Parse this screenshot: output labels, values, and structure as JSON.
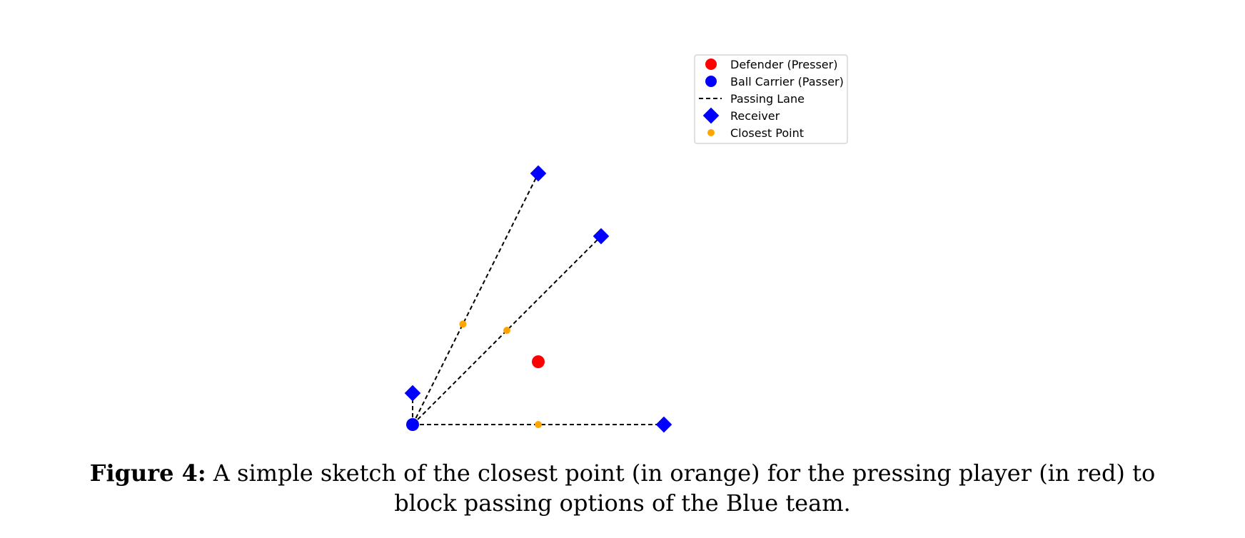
{
  "chart_data": {
    "type": "scatter",
    "title": "",
    "xlabel": "",
    "ylabel": "",
    "axes_visible": false,
    "grid": false,
    "legend": {
      "placement": "upper-center-right",
      "entries": [
        {
          "label": "Defender (Presser)",
          "marker": "circle",
          "color": "#ff0000"
        },
        {
          "label": "Ball Carrier (Passer)",
          "marker": "circle",
          "color": "#0000ff"
        },
        {
          "label": "Passing Lane",
          "marker": "dashed-line",
          "color": "#000000"
        },
        {
          "label": "Receiver",
          "marker": "diamond",
          "color": "#0000ff"
        },
        {
          "label": "Closest Point",
          "marker": "small-circle",
          "color": "#ffa500"
        }
      ]
    },
    "xlim": [
      0,
      4
    ],
    "ylim": [
      0,
      4
    ],
    "defender": {
      "x": 2.0,
      "y": 1.0
    },
    "ball_carrier": {
      "x": 0.0,
      "y": 0.0
    },
    "receivers": [
      {
        "x": 0.0,
        "y": 0.5
      },
      {
        "x": 2.0,
        "y": 4.0
      },
      {
        "x": 3.0,
        "y": 3.0
      },
      {
        "x": 4.0,
        "y": 0.0
      }
    ],
    "passing_lanes": [
      {
        "from": [
          0.0,
          0.0
        ],
        "to": [
          0.0,
          0.5
        ]
      },
      {
        "from": [
          0.0,
          0.0
        ],
        "to": [
          2.0,
          4.0
        ]
      },
      {
        "from": [
          0.0,
          0.0
        ],
        "to": [
          3.0,
          3.0
        ]
      },
      {
        "from": [
          0.0,
          0.0
        ],
        "to": [
          4.0,
          0.0
        ]
      }
    ],
    "closest_points": [
      {
        "x": 0.8,
        "y": 1.6
      },
      {
        "x": 1.5,
        "y": 1.5
      },
      {
        "x": 2.0,
        "y": 0.0
      }
    ]
  },
  "caption": {
    "label": "Figure 4:",
    "text": "A simple sketch of the closest point (in orange) for the pressing player (in red) to block passing options of the Blue team."
  }
}
